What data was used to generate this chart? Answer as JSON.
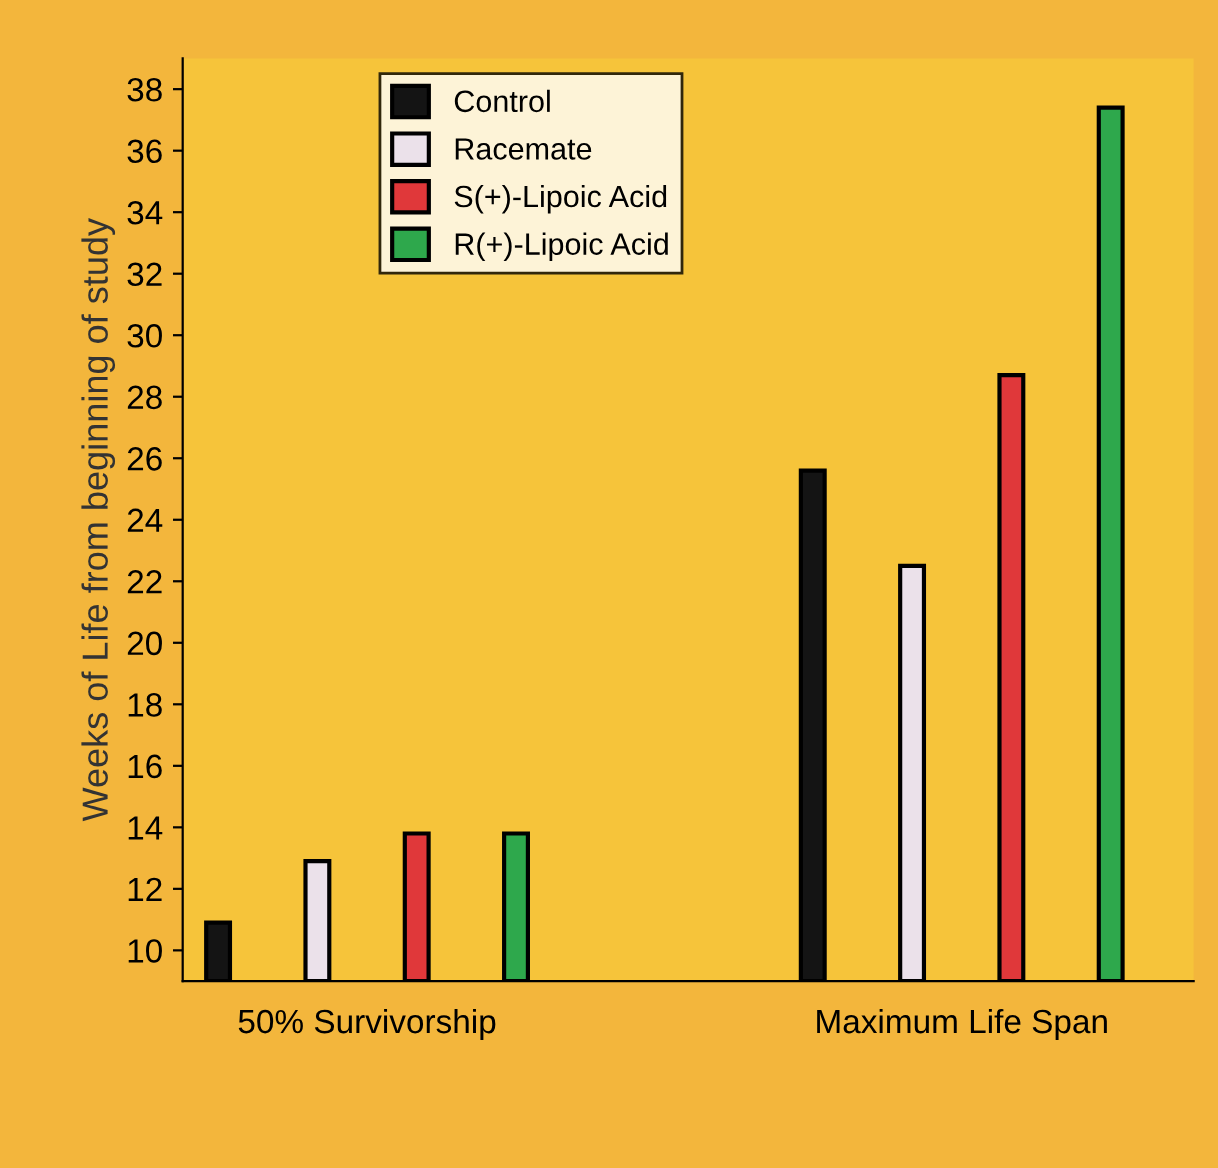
{
  "chart_data": {
    "type": "bar",
    "categories": [
      "50% Survivorship",
      "Maximum Life Span"
    ],
    "ylabel": "Weeks of Life from beginning of study",
    "series": [
      {
        "name": "Control",
        "color": "#141414",
        "values": [
          10.9,
          25.6
        ]
      },
      {
        "name": "Racemate",
        "color": "#ebe1ea",
        "values": [
          12.9,
          22.5
        ]
      },
      {
        "name": "S(+)-Lipoic Acid",
        "color": "#e0383a",
        "values": [
          13.8,
          28.7
        ]
      },
      {
        "name": "R(+)-Lipoic Acid",
        "color": "#2ea84c",
        "values": [
          13.8,
          37.4
        ]
      }
    ],
    "ylim": [
      9,
      39
    ],
    "yticks": [
      10,
      12,
      14,
      16,
      18,
      20,
      22,
      24,
      26,
      28,
      30,
      32,
      34,
      36,
      38
    ],
    "grid": false,
    "legend": "top left"
  }
}
